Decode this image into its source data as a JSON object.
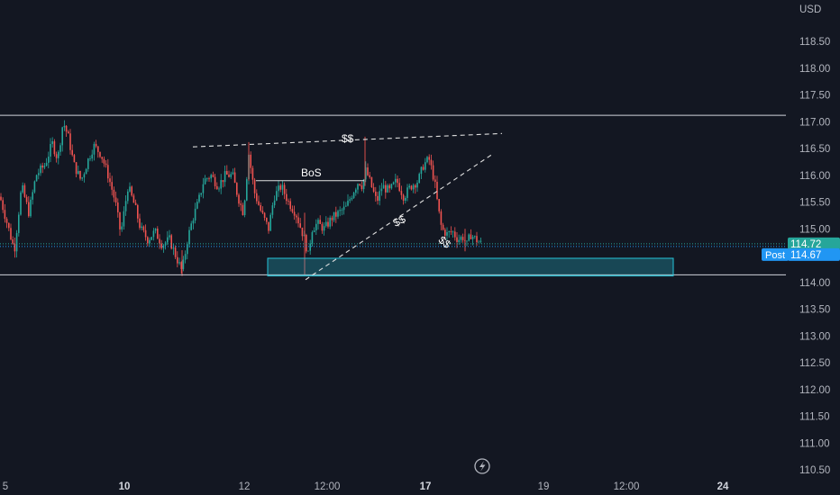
{
  "chart_data": {
    "type": "candlestick",
    "currency": "USD",
    "y_axis": {
      "min": 110.5,
      "max": 118.5,
      "ticks": [
        "118.50",
        "118.00",
        "117.50",
        "117.00",
        "116.50",
        "116.00",
        "115.50",
        "115.00",
        "114.50",
        "114.00",
        "113.50",
        "113.00",
        "112.50",
        "112.00",
        "111.50",
        "111.00",
        "110.50"
      ]
    },
    "x_axis": {
      "ticks": [
        {
          "label": "5",
          "major": false
        },
        {
          "label": "10",
          "major": true
        },
        {
          "label": "12",
          "major": false
        },
        {
          "label": "12:00",
          "major": false
        },
        {
          "label": "17",
          "major": true
        },
        {
          "label": "19",
          "major": false
        },
        {
          "label": "12:00",
          "major": false
        },
        {
          "label": "24",
          "major": true
        }
      ]
    },
    "price_labels": [
      {
        "text": "114.72",
        "value": 114.72,
        "color": "#26a69a"
      },
      {
        "label": "Post",
        "text": "114.67",
        "value": 114.67,
        "color": "#2196f3"
      }
    ],
    "levels": {
      "range_high": 117.12,
      "range_low": 114.14
    },
    "zone": {
      "top": 114.45,
      "bottom": 114.12
    },
    "annotations": [
      {
        "text": "$$"
      },
      {
        "text": "BoS"
      },
      {
        "text": "$$"
      },
      {
        "text": "$$"
      }
    ],
    "colors": {
      "up": "#26a69a",
      "down": "#ef5350",
      "background": "#131722",
      "zone": "#26c6da"
    },
    "key_prices": [
      [
        0,
        115.6
      ],
      [
        8,
        115.1
      ],
      [
        16,
        114.6
      ],
      [
        24,
        115.8
      ],
      [
        32,
        115.3
      ],
      [
        40,
        116.0
      ],
      [
        50,
        116.2
      ],
      [
        58,
        116.6
      ],
      [
        64,
        116.3
      ],
      [
        70,
        117.0
      ],
      [
        76,
        116.7
      ],
      [
        82,
        116.2
      ],
      [
        90,
        115.9
      ],
      [
        98,
        116.3
      ],
      [
        104,
        116.55
      ],
      [
        112,
        116.4
      ],
      [
        120,
        116.0
      ],
      [
        128,
        115.5
      ],
      [
        134,
        114.9
      ],
      [
        142,
        115.8
      ],
      [
        150,
        115.4
      ],
      [
        156,
        115.0
      ],
      [
        164,
        114.8
      ],
      [
        172,
        114.95
      ],
      [
        180,
        114.7
      ],
      [
        188,
        114.8
      ],
      [
        196,
        114.45
      ],
      [
        202,
        114.2
      ],
      [
        208,
        114.8
      ],
      [
        214,
        115.2
      ],
      [
        220,
        115.5
      ],
      [
        226,
        115.9
      ],
      [
        234,
        116.0
      ],
      [
        242,
        115.8
      ],
      [
        250,
        116.0
      ],
      [
        258,
        116.0
      ],
      [
        264,
        115.6
      ],
      [
        270,
        115.3
      ],
      [
        276,
        116.4
      ],
      [
        282,
        115.7
      ],
      [
        290,
        115.3
      ],
      [
        298,
        115.0
      ],
      [
        304,
        115.6
      ],
      [
        312,
        115.8
      ],
      [
        320,
        115.5
      ],
      [
        328,
        115.3
      ],
      [
        334,
        115.0
      ],
      [
        338,
        114.8
      ],
      [
        342,
        114.5
      ],
      [
        346,
        115.0
      ],
      [
        352,
        115.1
      ],
      [
        360,
        115.0
      ],
      [
        368,
        115.2
      ],
      [
        376,
        115.3
      ],
      [
        384,
        115.4
      ],
      [
        392,
        115.7
      ],
      [
        398,
        115.9
      ],
      [
        402,
        115.8
      ],
      [
        406,
        116.1
      ],
      [
        412,
        115.8
      ],
      [
        418,
        115.5
      ],
      [
        424,
        115.8
      ],
      [
        432,
        115.7
      ],
      [
        440,
        115.9
      ],
      [
        448,
        115.6
      ],
      [
        456,
        115.8
      ],
      [
        464,
        115.9
      ],
      [
        470,
        116.2
      ],
      [
        476,
        116.3
      ],
      [
        482,
        115.9
      ],
      [
        486,
        115.4
      ],
      [
        490,
        115.0
      ],
      [
        496,
        114.9
      ],
      [
        502,
        114.95
      ],
      [
        508,
        114.8
      ],
      [
        514,
        114.85
      ],
      [
        518,
        114.7
      ],
      [
        522,
        114.9
      ],
      [
        528,
        114.8
      ],
      [
        534,
        114.72
      ]
    ]
  }
}
